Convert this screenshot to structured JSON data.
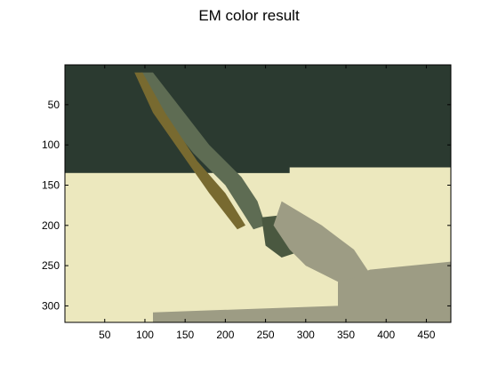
{
  "figure": {
    "title": "EM color result"
  },
  "colors": {
    "dark_background": "#2B3A30",
    "light_region": "#ECE8BE",
    "gray_region": "#9D9C84",
    "green_mid": "#5E6C53",
    "olive_brown": "#786A30",
    "dark_olive": "#4A5840"
  },
  "chart_data": {
    "type": "heatmap",
    "title": "EM color result",
    "xlabel": "",
    "ylabel": "",
    "x_ticks": [
      "50",
      "100",
      "150",
      "200",
      "250",
      "300",
      "350",
      "400",
      "450"
    ],
    "y_ticks": [
      "50",
      "100",
      "150",
      "200",
      "250",
      "300"
    ],
    "xlim": [
      0.5,
      480.5
    ],
    "ylim": [
      0.5,
      320.5
    ],
    "y_reversed": true,
    "grid": false,
    "regions": [
      {
        "label": "dark background",
        "color": "#2B3A30",
        "polygon": [
          [
            0.5,
            0.5
          ],
          [
            480.5,
            0.5
          ],
          [
            480.5,
            128
          ],
          [
            280,
            128
          ],
          [
            280,
            135
          ],
          [
            0.5,
            135
          ]
        ]
      },
      {
        "label": "light region",
        "color": "#ECE8BE",
        "polygon": [
          [
            0.5,
            135
          ],
          [
            210,
            135
          ],
          [
            240,
            210
          ],
          [
            280,
            230
          ],
          [
            300,
            250
          ],
          [
            340,
            270
          ],
          [
            340,
            320.5
          ],
          [
            0.5,
            320.5
          ]
        ]
      },
      {
        "label": "light region right",
        "color": "#ECE8BE",
        "polygon": [
          [
            280,
            135
          ],
          [
            480.5,
            128
          ],
          [
            480.5,
            240
          ],
          [
            420,
            250
          ],
          [
            380,
            260
          ],
          [
            350,
            240
          ],
          [
            320,
            220
          ],
          [
            290,
            200
          ],
          [
            270,
            170
          ]
        ]
      },
      {
        "label": "gray region",
        "color": "#9D9C84",
        "polygon": [
          [
            340,
            270
          ],
          [
            380,
            255
          ],
          [
            430,
            250
          ],
          [
            480.5,
            245
          ],
          [
            480.5,
            320.5
          ],
          [
            340,
            320.5
          ]
        ]
      },
      {
        "label": "gray band bottom",
        "color": "#9D9C84",
        "polygon": [
          [
            110,
            308
          ],
          [
            340,
            300
          ],
          [
            340,
            320.5
          ],
          [
            110,
            320.5
          ]
        ]
      },
      {
        "label": "stripe green",
        "color": "#5E6C53",
        "polygon": [
          [
            95,
            10
          ],
          [
            110,
            10
          ],
          [
            180,
            100
          ],
          [
            220,
            140
          ],
          [
            240,
            170
          ],
          [
            250,
            200
          ],
          [
            235,
            205
          ],
          [
            200,
            150
          ],
          [
            160,
            110
          ],
          [
            120,
            60
          ]
        ]
      },
      {
        "label": "stripe brown",
        "color": "#786A30",
        "polygon": [
          [
            87,
            10
          ],
          [
            97,
            10
          ],
          [
            125,
            60
          ],
          [
            165,
            120
          ],
          [
            200,
            160
          ],
          [
            225,
            200
          ],
          [
            215,
            205
          ],
          [
            180,
            160
          ],
          [
            145,
            110
          ],
          [
            110,
            60
          ]
        ]
      },
      {
        "label": "shadow blobs",
        "color": "#4A5840",
        "polygon": [
          [
            245,
            190
          ],
          [
            290,
            185
          ],
          [
            310,
            205
          ],
          [
            300,
            230
          ],
          [
            270,
            240
          ],
          [
            250,
            225
          ]
        ]
      },
      {
        "label": "gray scatter",
        "color": "#9D9C84",
        "polygon": [
          [
            270,
            170
          ],
          [
            320,
            200
          ],
          [
            360,
            230
          ],
          [
            380,
            260
          ],
          [
            340,
            270
          ],
          [
            300,
            250
          ],
          [
            280,
            230
          ],
          [
            260,
            200
          ]
        ]
      }
    ]
  }
}
